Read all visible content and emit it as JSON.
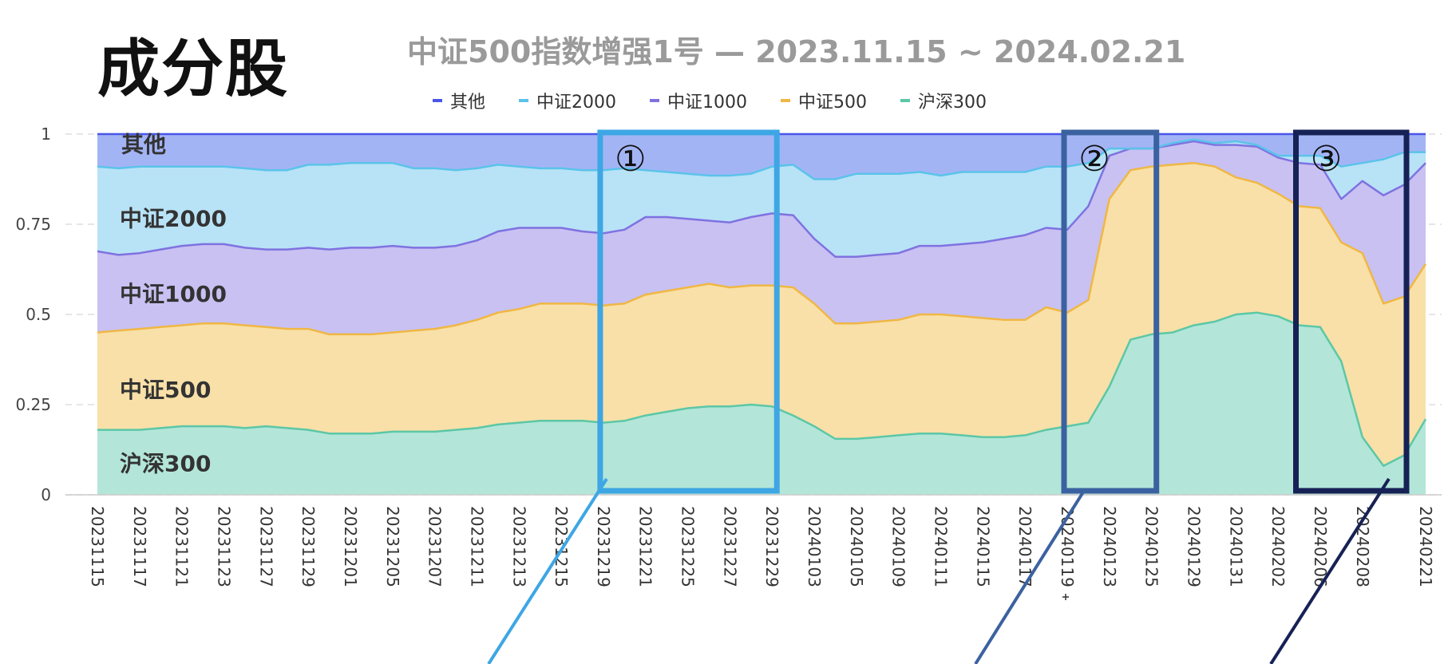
{
  "slide": {
    "headline": "成分股"
  },
  "chart_data": {
    "type": "area",
    "stacked": true,
    "title": "中证500指数增强1号 — 2023.11.15 ~ 2024.02.21",
    "xlabel": "",
    "ylabel": "",
    "ylim": [
      0,
      1
    ],
    "yticks": [
      "0",
      "0.25",
      "0.5",
      "0.75",
      "1"
    ],
    "grid": "horizontal-dashed",
    "legend_position": "top-center",
    "x": [
      "20231115",
      "20231116",
      "20231117",
      "20231120",
      "20231121",
      "20231122",
      "20231123",
      "20231124",
      "20231127",
      "20231128",
      "20231129",
      "20231130",
      "20231201",
      "20231204",
      "20231205",
      "20231206",
      "20231207",
      "20231208",
      "20231211",
      "20231212",
      "20231213",
      "20231214",
      "20231215",
      "20231218",
      "20231219",
      "20231220",
      "20231221",
      "20231222",
      "20231225",
      "20231226",
      "20231227",
      "20231228",
      "20231229",
      "20240102",
      "20240103",
      "20240104",
      "20240105",
      "20240108",
      "20240109",
      "20240110",
      "20240111",
      "20240112",
      "20240115",
      "20240116",
      "20240117",
      "20240118",
      "20240119",
      "20240122",
      "20240123",
      "20240124",
      "20240125",
      "20240126",
      "20240129",
      "20240130",
      "20240131",
      "20240201",
      "20240202",
      "20240205",
      "20240206",
      "20240207",
      "20240208",
      "20240219",
      "20240220",
      "20240221"
    ],
    "x_tick_labels": [
      "20231115",
      "20231117",
      "20231121",
      "20231123",
      "20231127",
      "20231129",
      "20231201",
      "20231205",
      "20231207",
      "20231211",
      "20231213",
      "20231215",
      "20231219",
      "20231221",
      "20231225",
      "20231227",
      "20231229",
      "20240103",
      "20240105",
      "20240109",
      "20240111",
      "20240115",
      "20240117",
      "20240119",
      "20240123",
      "20240125",
      "20240129",
      "20240131",
      "20240202",
      "20240206",
      "20240208",
      "20240221"
    ],
    "series": [
      {
        "name": "沪深300",
        "color": "#5cc7a6",
        "fill": "#b3e6d8",
        "values": [
          0.18,
          0.18,
          0.18,
          0.185,
          0.19,
          0.19,
          0.19,
          0.185,
          0.19,
          0.185,
          0.18,
          0.17,
          0.17,
          0.17,
          0.175,
          0.175,
          0.175,
          0.18,
          0.185,
          0.195,
          0.2,
          0.205,
          0.205,
          0.205,
          0.2,
          0.205,
          0.22,
          0.23,
          0.24,
          0.245,
          0.245,
          0.25,
          0.245,
          0.22,
          0.19,
          0.155,
          0.155,
          0.16,
          0.165,
          0.17,
          0.17,
          0.165,
          0.16,
          0.16,
          0.165,
          0.18,
          0.19,
          0.2,
          0.3,
          0.43,
          0.445,
          0.45,
          0.47,
          0.48,
          0.5,
          0.505,
          0.495,
          0.47,
          0.465,
          0.37,
          0.16,
          0.08,
          0.11,
          0.21
        ]
      },
      {
        "name": "中证500",
        "color": "#f0b744",
        "fill": "#f8e0a8",
        "values": [
          0.27,
          0.275,
          0.28,
          0.28,
          0.28,
          0.285,
          0.285,
          0.285,
          0.275,
          0.275,
          0.28,
          0.275,
          0.275,
          0.275,
          0.275,
          0.28,
          0.285,
          0.29,
          0.3,
          0.31,
          0.315,
          0.325,
          0.325,
          0.325,
          0.325,
          0.325,
          0.335,
          0.335,
          0.335,
          0.34,
          0.33,
          0.33,
          0.335,
          0.355,
          0.34,
          0.32,
          0.32,
          0.32,
          0.32,
          0.33,
          0.33,
          0.33,
          0.33,
          0.325,
          0.32,
          0.34,
          0.315,
          0.34,
          0.52,
          0.47,
          0.465,
          0.465,
          0.45,
          0.43,
          0.38,
          0.36,
          0.34,
          0.33,
          0.33,
          0.33,
          0.51,
          0.45,
          0.44,
          0.43
        ]
      },
      {
        "name": "中证1000",
        "color": "#7f72e0",
        "fill": "#c8c1f2",
        "values": [
          0.225,
          0.21,
          0.21,
          0.215,
          0.22,
          0.22,
          0.22,
          0.215,
          0.215,
          0.22,
          0.225,
          0.235,
          0.24,
          0.24,
          0.24,
          0.23,
          0.225,
          0.22,
          0.22,
          0.225,
          0.225,
          0.21,
          0.21,
          0.2,
          0.2,
          0.205,
          0.215,
          0.205,
          0.19,
          0.175,
          0.18,
          0.19,
          0.2,
          0.2,
          0.18,
          0.185,
          0.185,
          0.185,
          0.185,
          0.19,
          0.19,
          0.2,
          0.21,
          0.225,
          0.235,
          0.22,
          0.23,
          0.26,
          0.12,
          0.06,
          0.05,
          0.055,
          0.06,
          0.06,
          0.09,
          0.1,
          0.1,
          0.12,
          0.12,
          0.12,
          0.2,
          0.3,
          0.31,
          0.28
        ]
      },
      {
        "name": "中证2000",
        "color": "#5bc3ea",
        "fill": "#b8e2f6",
        "values": [
          0.235,
          0.24,
          0.24,
          0.23,
          0.22,
          0.215,
          0.215,
          0.22,
          0.22,
          0.22,
          0.23,
          0.235,
          0.235,
          0.235,
          0.23,
          0.22,
          0.22,
          0.21,
          0.2,
          0.185,
          0.17,
          0.165,
          0.165,
          0.17,
          0.175,
          0.17,
          0.13,
          0.125,
          0.125,
          0.125,
          0.13,
          0.12,
          0.13,
          0.14,
          0.165,
          0.215,
          0.23,
          0.225,
          0.22,
          0.205,
          0.195,
          0.2,
          0.195,
          0.185,
          0.175,
          0.17,
          0.175,
          0.12,
          0.02,
          0.0,
          0.0,
          0.005,
          0.005,
          0.005,
          0.01,
          0.005,
          0.005,
          0.02,
          0.025,
          0.09,
          0.05,
          0.1,
          0.09,
          0.03
        ]
      },
      {
        "name": "其他",
        "color": "#4a55e8",
        "fill": "#a3b4f5",
        "values": [
          0.09,
          0.095,
          0.09,
          0.09,
          0.09,
          0.09,
          0.09,
          0.095,
          0.1,
          0.1,
          0.085,
          0.085,
          0.08,
          0.08,
          0.08,
          0.095,
          0.095,
          0.1,
          0.095,
          0.085,
          0.09,
          0.095,
          0.095,
          0.1,
          0.1,
          0.095,
          0.1,
          0.105,
          0.11,
          0.115,
          0.115,
          0.11,
          0.09,
          0.085,
          0.125,
          0.125,
          0.11,
          0.11,
          0.11,
          0.105,
          0.115,
          0.105,
          0.105,
          0.105,
          0.105,
          0.09,
          0.09,
          0.08,
          0.04,
          0.04,
          0.04,
          0.025,
          0.015,
          0.025,
          0.02,
          0.03,
          0.06,
          0.06,
          0.06,
          0.09,
          0.08,
          0.07,
          0.05,
          0.05
        ]
      }
    ],
    "area_labels": [
      "其他",
      "中证2000",
      "中证1000",
      "中证500",
      "沪深300"
    ],
    "annotations": [
      {
        "label": "①",
        "from": "20231219",
        "to": "20231229",
        "color": "#3ea6e4"
      },
      {
        "label": "②",
        "from": "20240119",
        "to": "20240125",
        "color": "#3b62a0"
      },
      {
        "label": "③",
        "from": "20240205",
        "to": "20240221",
        "color": "#162155"
      }
    ]
  }
}
